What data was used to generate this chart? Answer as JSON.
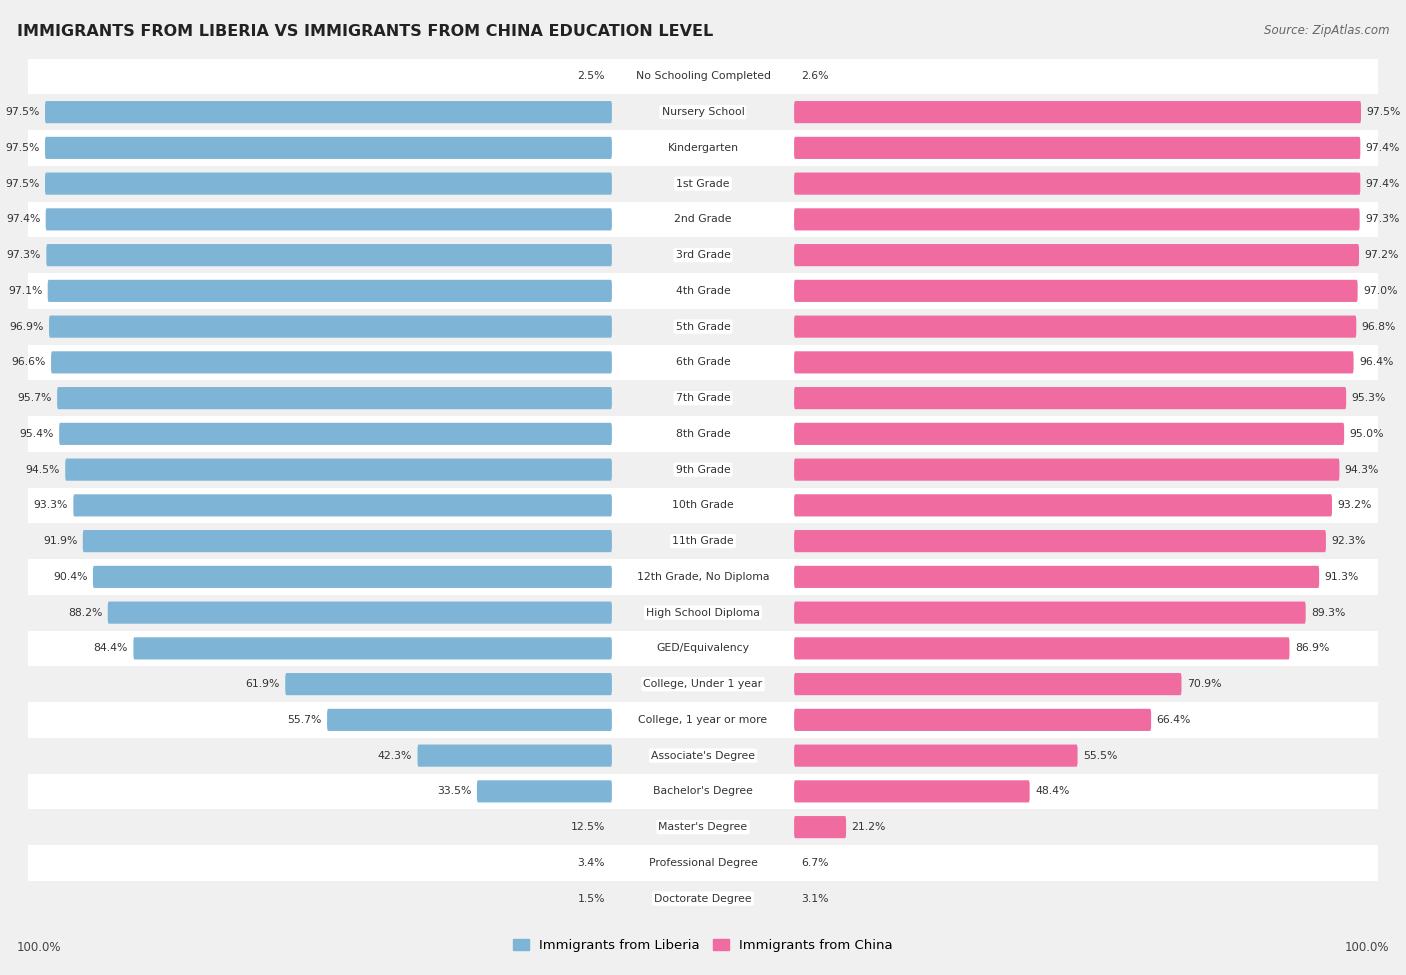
{
  "title": "IMMIGRANTS FROM LIBERIA VS IMMIGRANTS FROM CHINA EDUCATION LEVEL",
  "source": "Source: ZipAtlas.com",
  "categories": [
    "No Schooling Completed",
    "Nursery School",
    "Kindergarten",
    "1st Grade",
    "2nd Grade",
    "3rd Grade",
    "4th Grade",
    "5th Grade",
    "6th Grade",
    "7th Grade",
    "8th Grade",
    "9th Grade",
    "10th Grade",
    "11th Grade",
    "12th Grade, No Diploma",
    "High School Diploma",
    "GED/Equivalency",
    "College, Under 1 year",
    "College, 1 year or more",
    "Associate's Degree",
    "Bachelor's Degree",
    "Master's Degree",
    "Professional Degree",
    "Doctorate Degree"
  ],
  "liberia": [
    2.5,
    97.5,
    97.5,
    97.5,
    97.4,
    97.3,
    97.1,
    96.9,
    96.6,
    95.7,
    95.4,
    94.5,
    93.3,
    91.9,
    90.4,
    88.2,
    84.4,
    61.9,
    55.7,
    42.3,
    33.5,
    12.5,
    3.4,
    1.5
  ],
  "china": [
    2.6,
    97.5,
    97.4,
    97.4,
    97.3,
    97.2,
    97.0,
    96.8,
    96.4,
    95.3,
    95.0,
    94.3,
    93.2,
    92.3,
    91.3,
    89.3,
    86.9,
    70.9,
    66.4,
    55.5,
    48.4,
    21.2,
    6.7,
    3.1
  ],
  "liberia_color": "#7eb5d6",
  "china_color": "#f06ba0",
  "bg_color": "#f0f0f0",
  "row_bg_even": "#ffffff",
  "row_bg_odd": "#f0f0f0",
  "legend_liberia": "Immigrants from Liberia",
  "legend_china": "Immigrants from China",
  "axis_label_left": "100.0%",
  "axis_label_right": "100.0%",
  "label_zone_half": 13.5,
  "max_val": 100.0,
  "value_fontsize": 7.8,
  "label_fontsize": 7.8,
  "title_fontsize": 11.5
}
